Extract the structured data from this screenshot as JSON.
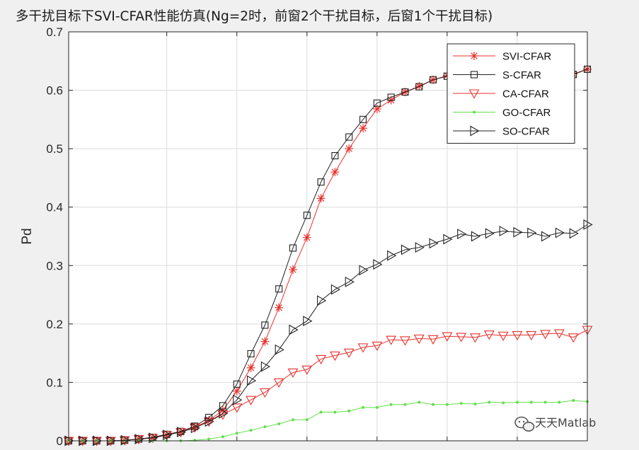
{
  "chart_data": {
    "type": "line",
    "title": "多干扰目标下SVI-CFAR性能仿真(Ng=2时，前窗2个干扰目标，后窗1个干扰目标)",
    "xlabel": "",
    "ylabel": "Pd",
    "xlim": [
      -2,
      35
    ],
    "ylim": [
      0,
      0.7
    ],
    "yticks": [
      "0",
      "0.1",
      "0.2",
      "0.3",
      "0.4",
      "0.5",
      "0.6",
      "0.7"
    ],
    "grid": true,
    "legend_position": "top-right",
    "x": [
      -2,
      -1,
      0,
      1,
      2,
      3,
      4,
      5,
      6,
      7,
      8,
      9,
      10,
      11,
      12,
      13,
      14,
      15,
      16,
      17,
      18,
      19,
      20,
      21,
      22,
      23,
      24,
      25,
      26,
      27,
      28,
      29,
      30,
      31,
      32,
      33,
      34,
      35
    ],
    "series": [
      {
        "name": "SVI-CFAR",
        "color": "#e8322d",
        "marker": "asterisk",
        "values": [
          0.0,
          0.0,
          0.0,
          0.0,
          0.001,
          0.003,
          0.005,
          0.01,
          0.015,
          0.023,
          0.035,
          0.052,
          0.085,
          0.125,
          0.17,
          0.228,
          0.293,
          0.348,
          0.415,
          0.46,
          0.5,
          0.535,
          0.568,
          0.583,
          0.597,
          0.607,
          0.618,
          0.625,
          0.628,
          0.633,
          0.633,
          0.631,
          0.634,
          0.633,
          0.635,
          0.633,
          0.628,
          0.636
        ]
      },
      {
        "name": "S-CFAR",
        "color": "#222222",
        "marker": "square",
        "values": [
          0.0,
          0.0,
          0.0,
          0.0,
          0.001,
          0.003,
          0.006,
          0.011,
          0.016,
          0.025,
          0.04,
          0.06,
          0.097,
          0.149,
          0.198,
          0.26,
          0.33,
          0.386,
          0.443,
          0.488,
          0.52,
          0.55,
          0.578,
          0.588,
          0.597,
          0.606,
          0.618,
          0.624,
          0.628,
          0.631,
          0.633,
          0.632,
          0.634,
          0.634,
          0.636,
          0.633,
          0.627,
          0.636
        ]
      },
      {
        "name": "CA-CFAR",
        "color": "#e8322d",
        "marker": "triangle-down",
        "values": [
          0.0,
          0.0,
          0.0,
          0.0,
          0.001,
          0.003,
          0.005,
          0.01,
          0.015,
          0.023,
          0.033,
          0.045,
          0.057,
          0.07,
          0.083,
          0.1,
          0.117,
          0.122,
          0.14,
          0.146,
          0.151,
          0.16,
          0.163,
          0.173,
          0.172,
          0.175,
          0.174,
          0.179,
          0.178,
          0.177,
          0.182,
          0.18,
          0.181,
          0.181,
          0.183,
          0.184,
          0.177,
          0.19
        ]
      },
      {
        "name": "GO-CFAR",
        "color": "#62e04a",
        "marker": "dot",
        "values": [
          0.0,
          0.0,
          0.0,
          0.0,
          0.0,
          0.0,
          0.0,
          0.0,
          0.0,
          0.001,
          0.003,
          0.007,
          0.013,
          0.018,
          0.024,
          0.029,
          0.036,
          0.036,
          0.049,
          0.049,
          0.051,
          0.057,
          0.057,
          0.062,
          0.062,
          0.066,
          0.062,
          0.062,
          0.064,
          0.063,
          0.066,
          0.065,
          0.066,
          0.066,
          0.066,
          0.066,
          0.069,
          0.067
        ]
      },
      {
        "name": "SO-CFAR",
        "color": "#222222",
        "marker": "triangle-right",
        "values": [
          0.0,
          0.0,
          0.0,
          0.0,
          0.001,
          0.003,
          0.005,
          0.01,
          0.015,
          0.022,
          0.033,
          0.047,
          0.07,
          0.103,
          0.127,
          0.156,
          0.19,
          0.205,
          0.24,
          0.259,
          0.272,
          0.292,
          0.302,
          0.317,
          0.327,
          0.331,
          0.338,
          0.345,
          0.354,
          0.35,
          0.355,
          0.359,
          0.357,
          0.356,
          0.35,
          0.356,
          0.355,
          0.37
        ]
      }
    ]
  },
  "watermark": {
    "text": "天天Matlab",
    "icon": "wechat-icon"
  }
}
